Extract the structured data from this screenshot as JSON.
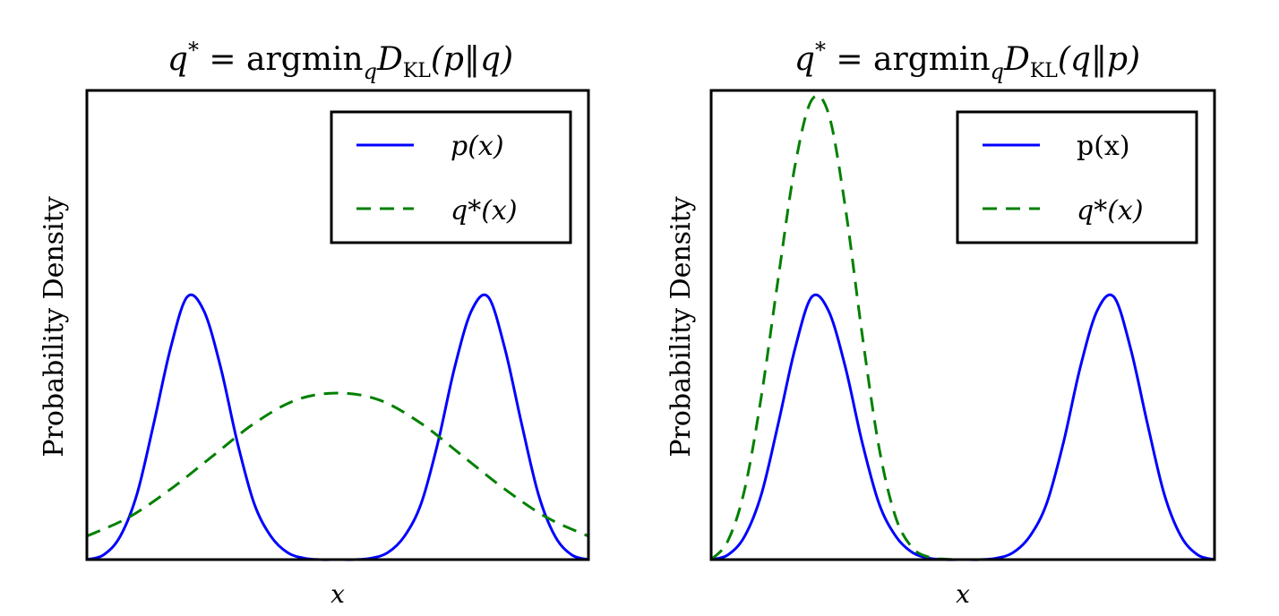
{
  "colors": {
    "p": "#0000ff",
    "q": "#008000"
  },
  "chart_data": [
    {
      "type": "line",
      "title": "q* = argmin_q D_KL(p‖q)",
      "title_parts": {
        "lhs": "q",
        "sup": "*",
        "eq": " = argmin",
        "sub_q": "q",
        "D": "D",
        "sub_kl": "KL",
        "args": "(p‖q)"
      },
      "xlabel": "x",
      "ylabel": "Probability Density",
      "xlim": [
        -3,
        3
      ],
      "ylim": [
        0,
        1.0
      ],
      "grid": false,
      "legend": "top-right",
      "series": [
        {
          "name": "p(x)",
          "style": "solid",
          "x": [
            -3,
            -2.8,
            -2.6,
            -2.4,
            -2.2,
            -2,
            -1.8,
            -1.6,
            -1.4,
            -1.2,
            -1,
            -0.8,
            -0.6,
            -0.4,
            -0.2,
            0,
            0.2,
            0.4,
            0.6,
            0.8,
            1,
            1.2,
            1.4,
            1.6,
            1.8,
            2,
            2.2,
            2.4,
            2.6,
            2.8,
            3
          ],
          "values": [
            0.0,
            0.01,
            0.05,
            0.14,
            0.29,
            0.45,
            0.56,
            0.53,
            0.41,
            0.25,
            0.12,
            0.05,
            0.015,
            0.003,
            0.0,
            0.0,
            0.0,
            0.003,
            0.015,
            0.05,
            0.12,
            0.25,
            0.41,
            0.53,
            0.56,
            0.45,
            0.29,
            0.14,
            0.05,
            0.01,
            0.0
          ]
        },
        {
          "name": "q*(x)",
          "style": "dashed",
          "x": [
            -3,
            -2.5,
            -2,
            -1.5,
            -1,
            -0.5,
            0,
            0.5,
            1,
            1.5,
            2,
            2.5,
            3
          ],
          "values": [
            0.05,
            0.09,
            0.15,
            0.22,
            0.29,
            0.34,
            0.355,
            0.34,
            0.29,
            0.22,
            0.15,
            0.09,
            0.05
          ]
        }
      ]
    },
    {
      "type": "line",
      "title": "q* = argmin_q D_KL(q‖p)",
      "title_parts": {
        "lhs": "q",
        "sup": "*",
        "eq": " = argmin",
        "sub_q": "q",
        "D": "D",
        "sub_kl": "KL",
        "args": "(q‖p)"
      },
      "xlabel": "x",
      "ylabel": "Probability Density",
      "xlim": [
        -3,
        3
      ],
      "ylim": [
        0,
        1.0
      ],
      "grid": false,
      "legend": "top-right",
      "series": [
        {
          "name": "p(x)",
          "style": "solid",
          "x": [
            -3,
            -2.8,
            -2.6,
            -2.4,
            -2.2,
            -2,
            -1.8,
            -1.6,
            -1.4,
            -1.2,
            -1,
            -0.8,
            -0.6,
            -0.4,
            -0.2,
            0,
            0.2,
            0.4,
            0.6,
            0.8,
            1,
            1.2,
            1.4,
            1.6,
            1.8,
            2,
            2.2,
            2.4,
            2.6,
            2.8,
            3
          ],
          "values": [
            0.0,
            0.01,
            0.05,
            0.14,
            0.29,
            0.45,
            0.56,
            0.53,
            0.41,
            0.25,
            0.12,
            0.05,
            0.015,
            0.003,
            0.0,
            0.0,
            0.0,
            0.003,
            0.015,
            0.05,
            0.12,
            0.25,
            0.41,
            0.53,
            0.56,
            0.45,
            0.29,
            0.14,
            0.05,
            0.01,
            0.0
          ]
        },
        {
          "name": "q*(x)",
          "style": "dashed",
          "x": [
            -3,
            -2.8,
            -2.6,
            -2.4,
            -2.2,
            -2,
            -1.8,
            -1.6,
            -1.4,
            -1.2,
            -1,
            -0.8,
            -0.6,
            -0.4,
            -0.2,
            0,
            0.5,
            1,
            1.5,
            2,
            2.5,
            3
          ],
          "values": [
            0.0,
            0.04,
            0.15,
            0.35,
            0.6,
            0.84,
            0.98,
            0.95,
            0.75,
            0.48,
            0.24,
            0.09,
            0.025,
            0.005,
            0.001,
            0.0,
            0.0,
            0.0,
            0.0,
            0.0,
            0.0,
            0.0
          ]
        }
      ]
    }
  ]
}
